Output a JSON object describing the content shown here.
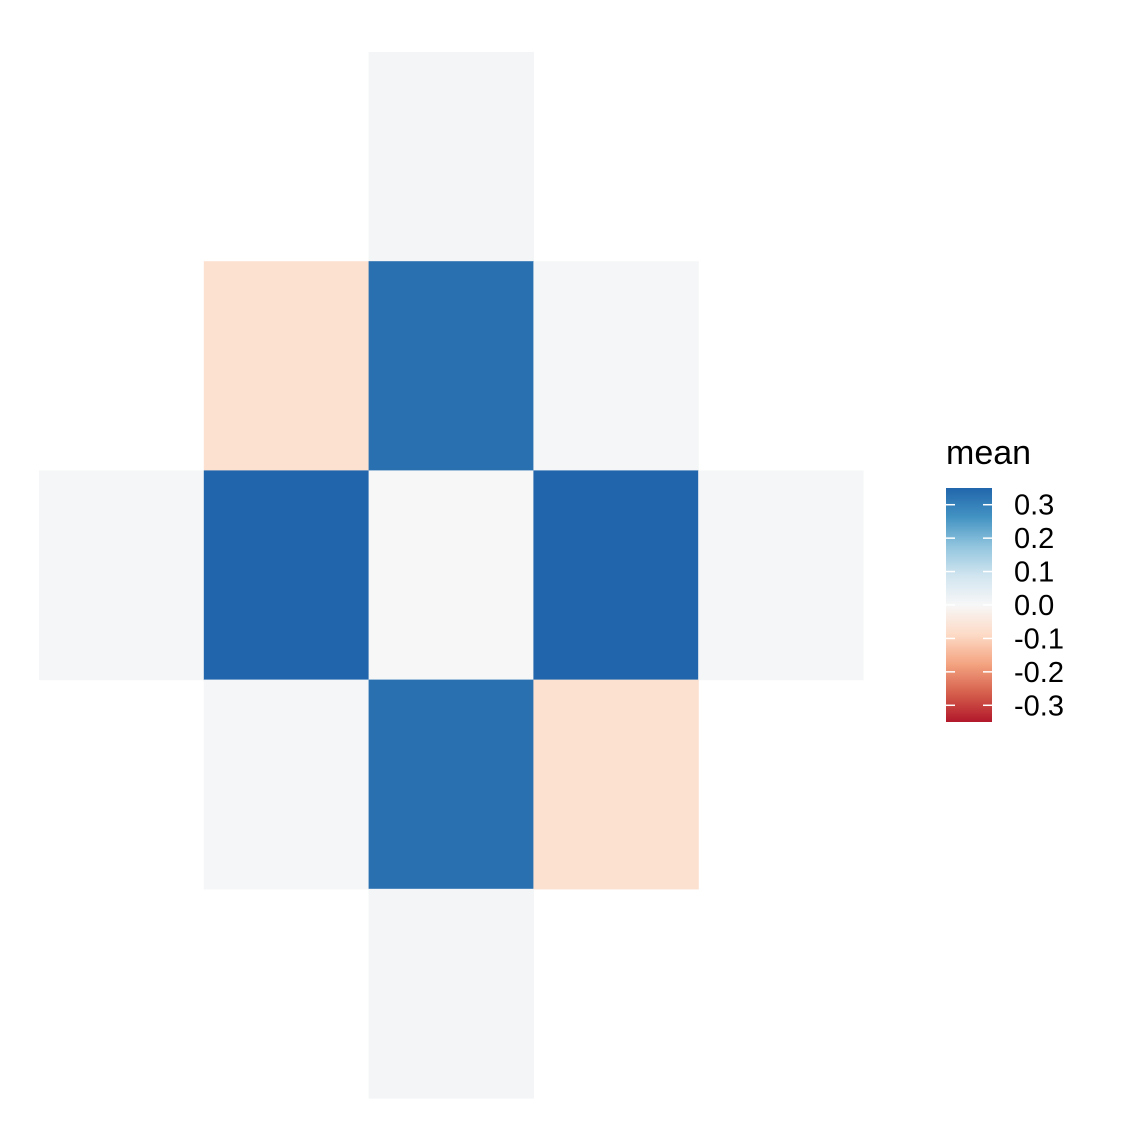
{
  "chart_data": {
    "type": "heatmap",
    "title": "",
    "xlabel": "",
    "ylabel": "",
    "grid": false,
    "cells": [
      {
        "row": 0,
        "col": 2,
        "value": 0.01
      },
      {
        "row": 1,
        "col": 1,
        "value": -0.07
      },
      {
        "row": 1,
        "col": 2,
        "value": 0.33
      },
      {
        "row": 1,
        "col": 3,
        "value": 0.005
      },
      {
        "row": 2,
        "col": 0,
        "value": 0.005
      },
      {
        "row": 2,
        "col": 1,
        "value": 0.37
      },
      {
        "row": 2,
        "col": 2,
        "value": 0.0
      },
      {
        "row": 2,
        "col": 3,
        "value": 0.37
      },
      {
        "row": 2,
        "col": 4,
        "value": 0.005
      },
      {
        "row": 3,
        "col": 1,
        "value": 0.005
      },
      {
        "row": 3,
        "col": 2,
        "value": 0.33
      },
      {
        "row": 3,
        "col": 3,
        "value": -0.07
      },
      {
        "row": 4,
        "col": 2,
        "value": 0.01
      }
    ],
    "grid_size": {
      "rows": 5,
      "cols": 5
    },
    "legend": {
      "title": "mean",
      "placement": "right",
      "range": [
        -0.35,
        0.35
      ],
      "ticks": [
        {
          "value": 0.3,
          "label": "0.3"
        },
        {
          "value": 0.2,
          "label": "0.2"
        },
        {
          "value": 0.1,
          "label": "0.1"
        },
        {
          "value": 0.0,
          "label": "0.0"
        },
        {
          "value": -0.1,
          "label": "-0.1"
        },
        {
          "value": -0.2,
          "label": "-0.2"
        },
        {
          "value": -0.3,
          "label": "-0.3"
        }
      ],
      "palette": [
        "#b2182b",
        "#d6604d",
        "#f4a582",
        "#fddbc7",
        "#f7f7f7",
        "#d1e5f0",
        "#92c5de",
        "#4393c3",
        "#2166ac"
      ]
    }
  }
}
